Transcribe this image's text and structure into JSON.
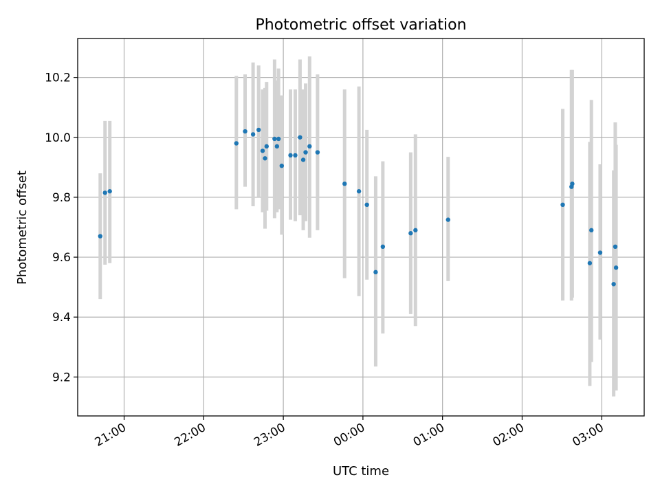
{
  "chart_data": {
    "type": "scatter",
    "title": "Photometric offset variation",
    "xlabel": "UTC time",
    "ylabel": "Photometric offset",
    "grid": true,
    "x_range_hours": [
      20.4167,
      27.5333
    ],
    "ylim": [
      9.07,
      10.33
    ],
    "x_ticks": [
      {
        "value": 21,
        "label": "21:00"
      },
      {
        "value": 22,
        "label": "22:00"
      },
      {
        "value": 23,
        "label": "23:00"
      },
      {
        "value": 24,
        "label": "00:00"
      },
      {
        "value": 25,
        "label": "01:00"
      },
      {
        "value": 26,
        "label": "02:00"
      },
      {
        "value": 27,
        "label": "03:00"
      }
    ],
    "y_ticks": [
      {
        "value": 9.2,
        "label": "9.2"
      },
      {
        "value": 9.4,
        "label": "9.4"
      },
      {
        "value": 9.6,
        "label": "9.6"
      },
      {
        "value": 9.8,
        "label": "9.8"
      },
      {
        "value": 10.0,
        "label": "10.0"
      },
      {
        "value": 10.2,
        "label": "10.2"
      }
    ],
    "colors": {
      "point": "#1f77b4",
      "errorbar": "#d3d3d3",
      "grid": "#b0b0b0"
    },
    "points": [
      {
        "t": 20.7,
        "y": 9.67,
        "lo": 9.46,
        "hi": 9.88
      },
      {
        "t": 20.76,
        "y": 9.815,
        "lo": 9.575,
        "hi": 10.055
      },
      {
        "t": 20.82,
        "y": 9.82,
        "lo": 9.58,
        "hi": 10.055
      },
      {
        "t": 22.41,
        "y": 9.98,
        "lo": 9.76,
        "hi": 10.205
      },
      {
        "t": 22.52,
        "y": 10.02,
        "lo": 9.835,
        "hi": 10.21
      },
      {
        "t": 22.62,
        "y": 10.01,
        "lo": 9.77,
        "hi": 10.25
      },
      {
        "t": 22.69,
        "y": 10.025,
        "lo": 9.8,
        "hi": 10.24
      },
      {
        "t": 22.74,
        "y": 9.955,
        "lo": 9.75,
        "hi": 10.16
      },
      {
        "t": 22.77,
        "y": 9.93,
        "lo": 9.695,
        "hi": 10.165
      },
      {
        "t": 22.79,
        "y": 9.97,
        "lo": 9.755,
        "hi": 10.185
      },
      {
        "t": 22.89,
        "y": 9.995,
        "lo": 9.73,
        "hi": 10.26
      },
      {
        "t": 22.92,
        "y": 9.97,
        "lo": 9.75,
        "hi": 10.19
      },
      {
        "t": 22.94,
        "y": 9.995,
        "lo": 9.76,
        "hi": 10.23
      },
      {
        "t": 22.98,
        "y": 9.905,
        "lo": 9.675,
        "hi": 10.14
      },
      {
        "t": 23.09,
        "y": 9.94,
        "lo": 9.725,
        "hi": 10.16
      },
      {
        "t": 23.15,
        "y": 9.94,
        "lo": 9.72,
        "hi": 10.16
      },
      {
        "t": 23.21,
        "y": 10.0,
        "lo": 9.74,
        "hi": 10.26
      },
      {
        "t": 23.25,
        "y": 9.925,
        "lo": 9.69,
        "hi": 10.16
      },
      {
        "t": 23.28,
        "y": 9.95,
        "lo": 9.72,
        "hi": 10.18
      },
      {
        "t": 23.33,
        "y": 9.97,
        "lo": 9.665,
        "hi": 10.27
      },
      {
        "t": 23.43,
        "y": 9.95,
        "lo": 9.69,
        "hi": 10.21
      },
      {
        "t": 23.77,
        "y": 9.845,
        "lo": 9.53,
        "hi": 10.16
      },
      {
        "t": 23.95,
        "y": 9.82,
        "lo": 9.47,
        "hi": 10.17
      },
      {
        "t": 24.05,
        "y": 9.775,
        "lo": 9.525,
        "hi": 10.025
      },
      {
        "t": 24.16,
        "y": 9.55,
        "lo": 9.235,
        "hi": 9.87
      },
      {
        "t": 24.25,
        "y": 9.635,
        "lo": 9.345,
        "hi": 9.92
      },
      {
        "t": 24.6,
        "y": 9.68,
        "lo": 9.41,
        "hi": 9.95
      },
      {
        "t": 24.66,
        "y": 9.69,
        "lo": 9.37,
        "hi": 10.01
      },
      {
        "t": 25.07,
        "y": 9.725,
        "lo": 9.52,
        "hi": 9.935
      },
      {
        "t": 26.51,
        "y": 9.775,
        "lo": 9.455,
        "hi": 10.095
      },
      {
        "t": 26.62,
        "y": 9.835,
        "lo": 9.455,
        "hi": 10.225
      },
      {
        "t": 26.63,
        "y": 9.845,
        "lo": 9.465,
        "hi": 10.225
      },
      {
        "t": 26.85,
        "y": 9.58,
        "lo": 9.17,
        "hi": 9.985
      },
      {
        "t": 26.87,
        "y": 9.69,
        "lo": 9.25,
        "hi": 10.125
      },
      {
        "t": 26.98,
        "y": 9.615,
        "lo": 9.325,
        "hi": 9.91
      },
      {
        "t": 27.15,
        "y": 9.51,
        "lo": 9.135,
        "hi": 9.89
      },
      {
        "t": 27.17,
        "y": 9.635,
        "lo": 9.155,
        "hi": 10.05
      },
      {
        "t": 27.18,
        "y": 9.565,
        "lo": 9.155,
        "hi": 9.975
      }
    ]
  }
}
